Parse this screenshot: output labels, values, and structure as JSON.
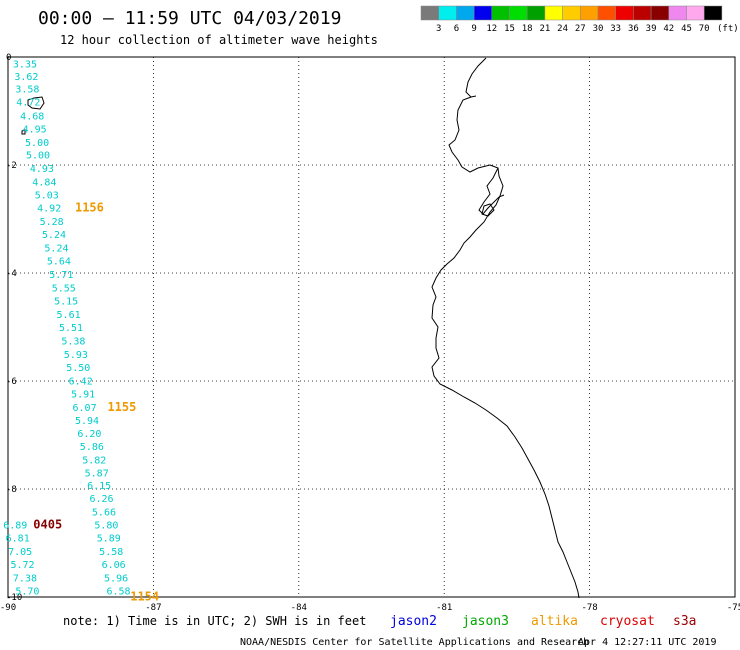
{
  "header": {
    "title": "00:00 – 11:59 UTC 04/03/2019",
    "subtitle": "12 hour collection of altimeter wave heights"
  },
  "colorbar": {
    "unit": "(ft)",
    "labels": [
      "3",
      "6",
      "9",
      "12",
      "15",
      "18",
      "21",
      "24",
      "27",
      "30",
      "33",
      "36",
      "39",
      "42",
      "45",
      "70"
    ],
    "colors": [
      "#7a7a7a",
      "#00eeee",
      "#00a8ee",
      "#0000ee",
      "#00c000",
      "#00dd00",
      "#00a000",
      "#ffff00",
      "#ffcc00",
      "#ffa000",
      "#ff5000",
      "#ee0000",
      "#bb0000",
      "#880000",
      "#ee88ee",
      "#ffa8ee",
      "#000000"
    ]
  },
  "map": {
    "xlim": [
      -90,
      -75
    ],
    "ylim": [
      -10,
      0
    ],
    "x_ticks": [
      "-90",
      "-87",
      "-84",
      "-81",
      "-78",
      "-75"
    ],
    "y_ticks": [
      "0",
      "-2",
      "-4",
      "-6",
      "-8",
      "-10"
    ],
    "grid": "dotted"
  },
  "chart_data": {
    "type": "scatter",
    "title": "12 hour collection of altimeter wave heights",
    "unit": "ft",
    "series": [
      {
        "name": "jason3",
        "color": "#00cccc",
        "points": [
          {
            "lon": -89.65,
            "lat": -0.12,
            "label": "3.35"
          },
          {
            "lon": -89.62,
            "lat": -0.35,
            "label": "3.62"
          },
          {
            "lon": -89.6,
            "lat": -0.58,
            "label": "3.58"
          },
          {
            "lon": -89.58,
            "lat": -0.82,
            "label": "4.72"
          },
          {
            "lon": -89.5,
            "lat": -1.08,
            "label": "4.68"
          },
          {
            "lon": -89.45,
            "lat": -1.32,
            "label": "4.95"
          },
          {
            "lon": -89.4,
            "lat": -1.57,
            "label": "5.00"
          },
          {
            "lon": -89.38,
            "lat": -1.81,
            "label": "5.00"
          },
          {
            "lon": -89.3,
            "lat": -2.06,
            "label": "4.93"
          },
          {
            "lon": -89.25,
            "lat": -2.31,
            "label": "4.84"
          },
          {
            "lon": -89.2,
            "lat": -2.55,
            "label": "5.03"
          },
          {
            "lon": -89.15,
            "lat": -2.79,
            "label": "4.92"
          },
          {
            "lon": -89.1,
            "lat": -3.04,
            "label": "5.28"
          },
          {
            "lon": -89.05,
            "lat": -3.28,
            "label": "5.24"
          },
          {
            "lon": -89.0,
            "lat": -3.53,
            "label": "5.24"
          },
          {
            "lon": -88.95,
            "lat": -3.77,
            "label": "5.64"
          },
          {
            "lon": -88.9,
            "lat": -4.02,
            "label": "5.71"
          },
          {
            "lon": -88.85,
            "lat": -4.27,
            "label": "5.55"
          },
          {
            "lon": -88.8,
            "lat": -4.51,
            "label": "5.15"
          },
          {
            "lon": -88.75,
            "lat": -4.76,
            "label": "5.61"
          },
          {
            "lon": -88.7,
            "lat": -5.0,
            "label": "5.51"
          },
          {
            "lon": -88.65,
            "lat": -5.25,
            "label": "5.38"
          },
          {
            "lon": -88.6,
            "lat": -5.5,
            "label": "5.93"
          },
          {
            "lon": -88.55,
            "lat": -5.74,
            "label": "5.50"
          },
          {
            "lon": -88.5,
            "lat": -5.99,
            "label": "6.42"
          },
          {
            "lon": -88.45,
            "lat": -6.23,
            "label": "5.91"
          },
          {
            "lon": -88.42,
            "lat": -6.48,
            "label": "6.07"
          },
          {
            "lon": -88.37,
            "lat": -6.72,
            "label": "5.94"
          },
          {
            "lon": -88.32,
            "lat": -6.96,
            "label": "6.20"
          },
          {
            "lon": -88.27,
            "lat": -7.2,
            "label": "5.86"
          },
          {
            "lon": -88.22,
            "lat": -7.45,
            "label": "5.82"
          },
          {
            "lon": -88.17,
            "lat": -7.69,
            "label": "5.87"
          },
          {
            "lon": -88.12,
            "lat": -7.93,
            "label": "6.15"
          },
          {
            "lon": -88.07,
            "lat": -8.17,
            "label": "6.26"
          },
          {
            "lon": -88.02,
            "lat": -8.42,
            "label": "5.66"
          },
          {
            "lon": -87.97,
            "lat": -8.66,
            "label": "5.80"
          },
          {
            "lon": -87.92,
            "lat": -8.9,
            "label": "5.89"
          },
          {
            "lon": -87.87,
            "lat": -9.15,
            "label": "5.58"
          },
          {
            "lon": -87.82,
            "lat": -9.39,
            "label": "6.06"
          },
          {
            "lon": -87.77,
            "lat": -9.64,
            "label": "5.96"
          },
          {
            "lon": -87.72,
            "lat": -9.88,
            "label": "6.58"
          },
          {
            "lon": -89.85,
            "lat": -8.66,
            "label": "6.89"
          },
          {
            "lon": -89.8,
            "lat": -8.9,
            "label": "6.81"
          },
          {
            "lon": -89.75,
            "lat": -9.15,
            "label": "7.05"
          },
          {
            "lon": -89.7,
            "lat": -9.39,
            "label": "5.72"
          },
          {
            "lon": -89.65,
            "lat": -9.64,
            "label": "7.38"
          },
          {
            "lon": -89.6,
            "lat": -9.88,
            "label": "5.70"
          }
        ]
      }
    ],
    "time_labels": [
      {
        "lon": -88.32,
        "lat": -2.79,
        "label": "1156",
        "color": "#ee9900"
      },
      {
        "lon": -87.65,
        "lat": -6.48,
        "label": "1155",
        "color": "#ee9900"
      },
      {
        "lon": -89.18,
        "lat": -8.66,
        "label": "0405",
        "color": "#880000"
      },
      {
        "lon": -87.18,
        "lat": -9.99,
        "label": "1154",
        "color": "#ee9900"
      }
    ]
  },
  "footer": {
    "note": "note:  1) Time is in UTC;  2) SWH is in feet",
    "legend": [
      {
        "label": "jason2",
        "color": "#0000dd"
      },
      {
        "label": "jason3",
        "color": "#00aa00"
      },
      {
        "label": "altika",
        "color": "#ee9900"
      },
      {
        "label": "cryosat",
        "color": "#dd0000"
      },
      {
        "label": "s3a",
        "color": "#990000"
      }
    ],
    "credit": "NOAA/NESDIS Center for Satellite Applications and Research",
    "timestamp": "Apr  4 12:27:11 UTC 2019"
  }
}
